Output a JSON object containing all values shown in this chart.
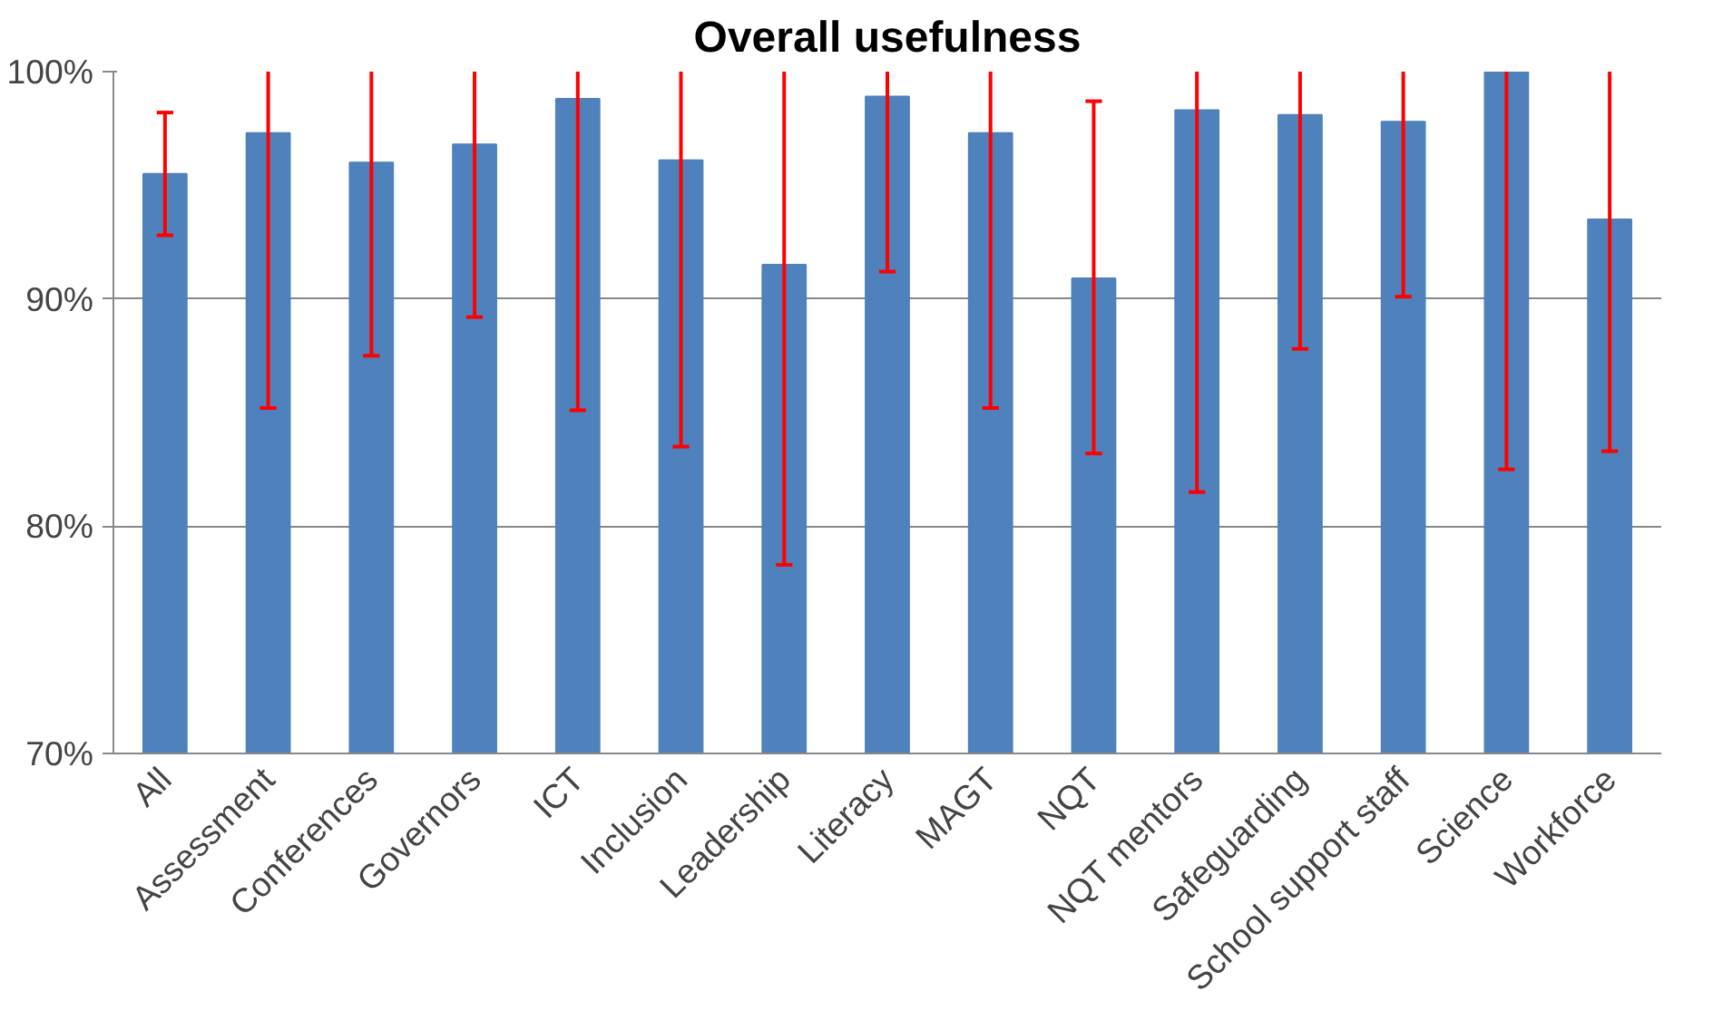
{
  "chart_data": {
    "type": "bar",
    "title": "Overall usefulness",
    "categories": [
      "All",
      "Assessment",
      "Conferences",
      "Governors",
      "ICT",
      "Inclusion",
      "Leadership",
      "Literacy",
      "MAGT",
      "NQT",
      "NQT mentors",
      "Safeguarding",
      "School support staff",
      "Science",
      "Workforce"
    ],
    "values": [
      95.5,
      97.3,
      96.0,
      96.8,
      98.8,
      96.1,
      91.5,
      98.9,
      97.3,
      90.9,
      98.3,
      98.1,
      97.8,
      100,
      93.5
    ],
    "errors": [
      [
        92.8,
        98.2
      ],
      [
        85.2,
        100
      ],
      [
        87.5,
        100
      ],
      [
        89.2,
        100
      ],
      [
        85.1,
        100
      ],
      [
        83.5,
        100
      ],
      [
        78.3,
        100
      ],
      [
        91.2,
        100
      ],
      [
        85.2,
        100
      ],
      [
        83.2,
        98.7
      ],
      [
        81.5,
        100
      ],
      [
        87.8,
        100
      ],
      [
        90.1,
        100
      ],
      [
        82.5,
        100
      ],
      [
        83.3,
        100
      ]
    ],
    "color": "#4f81bd",
    "ylim": [
      70,
      100
    ],
    "yticks": [
      {
        "value": 70,
        "label": "70%"
      },
      {
        "value": 80,
        "label": "80%"
      },
      {
        "value": 90,
        "label": "90%"
      },
      {
        "value": 100,
        "label": "100%"
      }
    ],
    "grid": "y"
  }
}
